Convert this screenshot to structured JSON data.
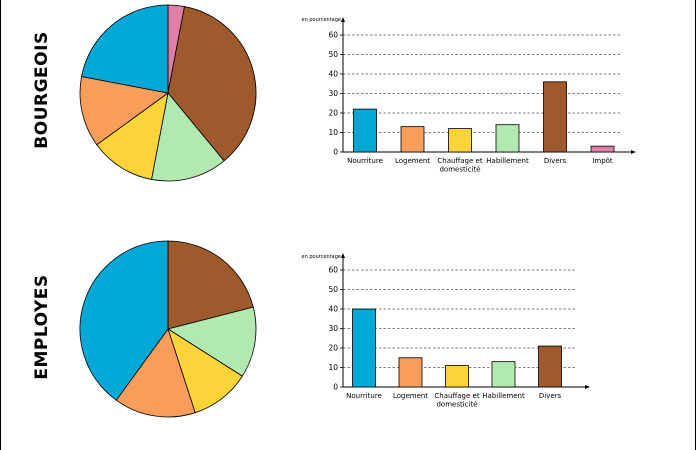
{
  "colors": {
    "nourriture": "#00a8d6",
    "logement": "#f99d5b",
    "chauffage": "#fcd43a",
    "habillement": "#b1e9b1",
    "divers": "#9e592d",
    "impot": "#e07ea8"
  },
  "panels": [
    {
      "label": "BOURGEOIS",
      "unit_label": "en pourcentage"
    },
    {
      "label": "EMPLOYES",
      "unit_label": "en pourcentage"
    }
  ],
  "chart_data": [
    {
      "type": "pie",
      "series_keys": [
        "impot",
        "divers",
        "habillement",
        "chauffage",
        "logement",
        "nourriture"
      ],
      "values": [
        3,
        36,
        14,
        12,
        13,
        22
      ],
      "start": "top, clockwise"
    },
    {
      "type": "bar",
      "categories": [
        "Nourriture",
        "Logement",
        "Chauffage et\ndomesticité",
        "Habillement",
        "Divers",
        "Impôt"
      ],
      "color_keys": [
        "nourriture",
        "logement",
        "chauffage",
        "habillement",
        "divers",
        "impot"
      ],
      "values": [
        22,
        13,
        12,
        14,
        36,
        3
      ],
      "ylabel": "en pourcentage",
      "ylim": [
        0,
        60
      ],
      "yticks": [
        0,
        10,
        20,
        30,
        40,
        50,
        60
      ],
      "grid": "dashed horizontal"
    },
    {
      "type": "pie",
      "series_keys": [
        "divers",
        "habillement",
        "chauffage",
        "logement",
        "nourriture"
      ],
      "values": [
        21,
        13,
        11,
        15,
        40
      ],
      "start": "top, clockwise"
    },
    {
      "type": "bar",
      "categories": [
        "Nourriture",
        "Logement",
        "Chauffage et\ndomesticité",
        "Habillement",
        "Divers"
      ],
      "color_keys": [
        "nourriture",
        "logement",
        "chauffage",
        "habillement",
        "divers"
      ],
      "values": [
        40,
        15,
        11,
        13,
        21
      ],
      "ylabel": "en pourcentage",
      "ylim": [
        0,
        60
      ],
      "yticks": [
        0,
        10,
        20,
        30,
        40,
        50,
        60
      ],
      "grid": "dashed horizontal"
    }
  ]
}
